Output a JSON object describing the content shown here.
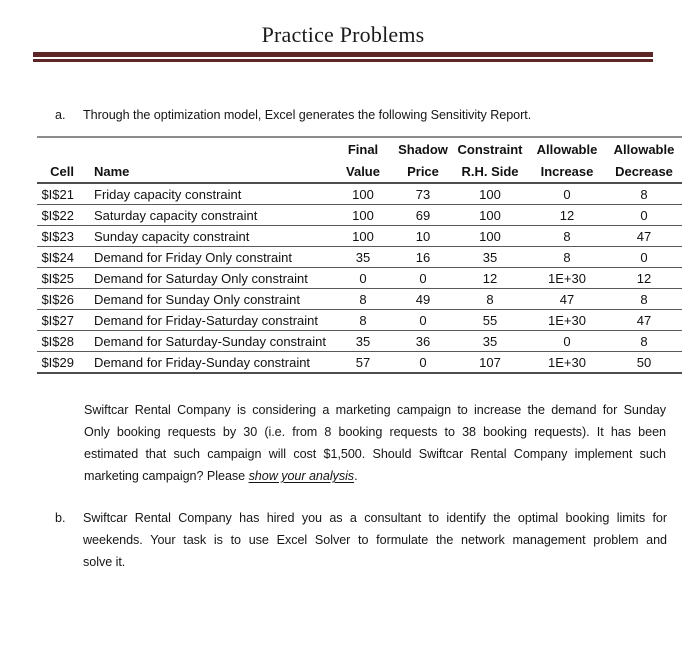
{
  "page": {
    "title": "Practice Problems"
  },
  "item_a": {
    "marker": "a.",
    "text": "Through the optimization model, Excel generates the following Sensitivity Report."
  },
  "report_table": {
    "columns": [
      {
        "top": "",
        "bottom": "Cell"
      },
      {
        "top": "",
        "bottom": "Name"
      },
      {
        "top": "Final",
        "bottom": "Value"
      },
      {
        "top": "Shadow",
        "bottom": "Price"
      },
      {
        "top": "Constraint",
        "bottom": "R.H. Side"
      },
      {
        "top": "Allowable",
        "bottom": "Increase"
      },
      {
        "top": "Allowable",
        "bottom": "Decrease"
      }
    ],
    "rows": [
      {
        "cell": "$I$21",
        "name": "Friday capacity constraint",
        "final_value": "100",
        "shadow_price": "73",
        "constraint_rhs": "100",
        "allowable_increase": "0",
        "allowable_decrease": "8"
      },
      {
        "cell": "$I$22",
        "name": "Saturday capacity constraint",
        "final_value": "100",
        "shadow_price": "69",
        "constraint_rhs": "100",
        "allowable_increase": "12",
        "allowable_decrease": "0"
      },
      {
        "cell": "$I$23",
        "name": "Sunday capacity constraint",
        "final_value": "100",
        "shadow_price": "10",
        "constraint_rhs": "100",
        "allowable_increase": "8",
        "allowable_decrease": "47"
      },
      {
        "cell": "$I$24",
        "name": "Demand for Friday Only constraint",
        "final_value": "35",
        "shadow_price": "16",
        "constraint_rhs": "35",
        "allowable_increase": "8",
        "allowable_decrease": "0"
      },
      {
        "cell": "$I$25",
        "name": "Demand for Saturday Only constraint",
        "final_value": "0",
        "shadow_price": "0",
        "constraint_rhs": "12",
        "allowable_increase": "1E+30",
        "allowable_decrease": "12"
      },
      {
        "cell": "$I$26",
        "name": "Demand for Sunday Only constraint",
        "final_value": "8",
        "shadow_price": "49",
        "constraint_rhs": "8",
        "allowable_increase": "47",
        "allowable_decrease": "8"
      },
      {
        "cell": "$I$27",
        "name": "Demand for Friday-Saturday constraint",
        "final_value": "8",
        "shadow_price": "0",
        "constraint_rhs": "55",
        "allowable_increase": "1E+30",
        "allowable_decrease": "47"
      },
      {
        "cell": "$I$28",
        "name": "Demand for Saturday-Sunday constraint",
        "final_value": "35",
        "shadow_price": "36",
        "constraint_rhs": "35",
        "allowable_increase": "0",
        "allowable_decrease": "8"
      },
      {
        "cell": "$I$29",
        "name": "Demand for Friday-Sunday constraint",
        "final_value": "57",
        "shadow_price": "0",
        "constraint_rhs": "107",
        "allowable_increase": "1E+30",
        "allowable_decrease": "50"
      }
    ]
  },
  "campaign_paragraph": {
    "lines": [
      "Swiftcar Rental Company is considering a marketing campaign to increase the demand for Sunday",
      "Only booking requests by 30 (i.e. from 8 booking requests to 38 booking requests). It has been",
      "estimated that such campaign will cost $1,500. Should Swiftcar Rental Company implement such"
    ],
    "last_line_before": "marketing campaign? Please ",
    "last_line_emphasis": "show your analysis",
    "last_line_after": "."
  },
  "item_b": {
    "marker": "b.",
    "lines": [
      "Swiftcar Rental Company has hired you as a consultant to identify the optimal booking limits for",
      "weekends. Your task is to use Excel Solver to formulate the network management problem and"
    ],
    "last_line": "solve it."
  },
  "colors": {
    "rule_maroon": "#5d2627",
    "table_border_dark": "#4d4d4d",
    "table_border_gray": "#8c8c8c"
  }
}
